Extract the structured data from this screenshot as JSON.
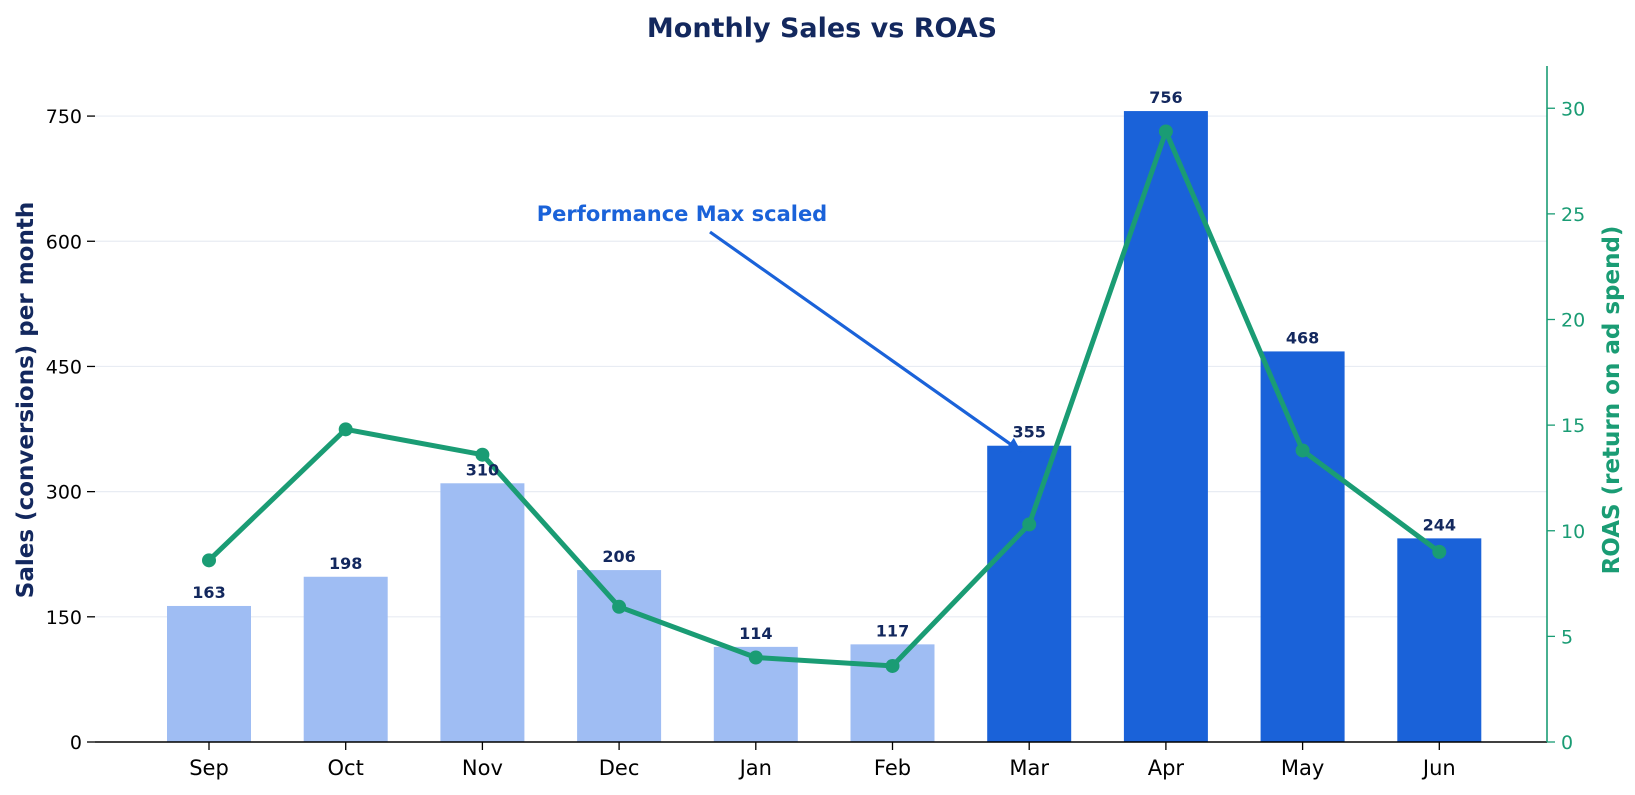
{
  "chart_data": {
    "type": "bar",
    "title": "Monthly Sales vs ROAS",
    "xlabel": "",
    "categories": [
      "Sep",
      "Oct",
      "Nov",
      "Dec",
      "Jan",
      "Feb",
      "Mar",
      "Apr",
      "May",
      "Jun"
    ],
    "series": [
      {
        "type": "bar",
        "axis": "left",
        "values": [
          163,
          198,
          310,
          206,
          114,
          117,
          355,
          756,
          468,
          244
        ],
        "data_labels": [
          "163",
          "198",
          "310",
          "206",
          "114",
          "117",
          "355",
          "756",
          "468",
          "244"
        ],
        "highlighted_from_index": 6
      },
      {
        "type": "line",
        "axis": "right",
        "values": [
          8.6,
          14.8,
          13.6,
          6.4,
          4.0,
          3.6,
          10.3,
          28.9,
          13.8,
          9.0
        ]
      }
    ],
    "ylabel": "Sales (conversions) per month",
    "ylim": [
      0,
      810
    ],
    "yticks": [
      0,
      150,
      300,
      450,
      600,
      750
    ],
    "y2label": "ROAS (return on ad spend)",
    "y2lim": [
      0,
      32
    ],
    "y2ticks": [
      0,
      5,
      10,
      15,
      20,
      25,
      30
    ],
    "grid": true,
    "annotation": {
      "text": "Performance Max scaled",
      "points_to_category": "Mar",
      "points_to_value": 355
    },
    "colors": {
      "bar_base": "#9fbdf3",
      "bar_highlight": "#1a62d9",
      "line": "#1a9c74",
      "title": "#13285e",
      "label_dark": "#13285e",
      "annotation": "#1a62d9",
      "grid": "#e8ecf3",
      "axis": "#000000"
    }
  }
}
